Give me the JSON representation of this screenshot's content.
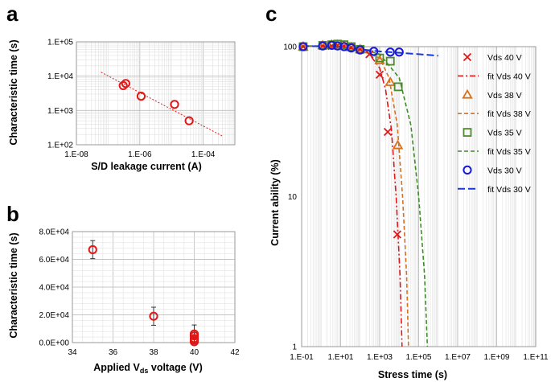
{
  "panels": {
    "a": "a",
    "b": "b",
    "c": "c"
  },
  "chart_data": [
    {
      "id": "a",
      "type": "scatter",
      "x_scale": "log",
      "y_scale": "log",
      "xlabel": "S/D leakage current (A)",
      "ylabel": "Characteristic time (s)",
      "xlim": [
        1e-08,
        0.001
      ],
      "ylim": [
        100,
        100000
      ],
      "x_ticks": [
        {
          "value": 1e-08,
          "label": "1.E-08"
        },
        {
          "value": 1e-06,
          "label": "1.E-06"
        },
        {
          "value": 0.0001,
          "label": "1.E-04"
        }
      ],
      "y_ticks": [
        {
          "value": 100,
          "label": "1.E+02"
        },
        {
          "value": 1000,
          "label": "1.E+03"
        },
        {
          "value": 10000,
          "label": "1.E+04"
        },
        {
          "value": 100000,
          "label": "1.E+05"
        }
      ],
      "points": [
        {
          "x": 3e-07,
          "y": 5300
        },
        {
          "x": 3.6e-07,
          "y": 6100
        },
        {
          "x": 1.1e-06,
          "y": 2600
        },
        {
          "x": 1.25e-05,
          "y": 1500
        },
        {
          "x": 3.6e-05,
          "y": 500
        }
      ],
      "fit": [
        {
          "x": 6e-08,
          "y": 13000
        },
        {
          "x": 0.0004,
          "y": 180
        }
      ]
    },
    {
      "id": "b",
      "type": "scatter",
      "xlabel_main": "Applied V",
      "xlabel_sub": "ds",
      "xlabel_end": " voltage (V)",
      "ylabel": "Characteristic time (s)",
      "xlim": [
        34,
        42
      ],
      "ylim": [
        0,
        80000
      ],
      "x_ticks": [
        {
          "value": 34,
          "label": "34"
        },
        {
          "value": 36,
          "label": "36"
        },
        {
          "value": 38,
          "label": "38"
        },
        {
          "value": 40,
          "label": "40"
        },
        {
          "value": 42,
          "label": "42"
        }
      ],
      "y_ticks": [
        {
          "value": 0,
          "label": "0.0E+00"
        },
        {
          "value": 20000,
          "label": "2.0E+04"
        },
        {
          "value": 40000,
          "label": "4.0E+04"
        },
        {
          "value": 60000,
          "label": "6.0E+04"
        },
        {
          "value": 80000,
          "label": "8.0E+04"
        }
      ],
      "points": [
        {
          "x": 35,
          "y": 67000,
          "err": 6500
        },
        {
          "x": 38,
          "y": 19000,
          "err": 6500
        },
        {
          "x": 40,
          "y": 6200,
          "err": 6500
        },
        {
          "x": 40,
          "y": 4800,
          "err": 0
        },
        {
          "x": 40,
          "y": 3000,
          "err": 0
        },
        {
          "x": 40,
          "y": 1800,
          "err": 0
        },
        {
          "x": 40,
          "y": 600,
          "err": 0
        }
      ]
    },
    {
      "id": "c",
      "type": "scatter",
      "x_scale": "log",
      "y_scale": "log",
      "xlabel": "Stress time (s)",
      "ylabel": "Current ability (%)",
      "xlim": [
        0.1,
        100000000000.0
      ],
      "ylim": [
        1,
        100
      ],
      "x_ticks": [
        {
          "value": 0.1,
          "label": "1.E-01"
        },
        {
          "value": 10,
          "label": "1.E+01"
        },
        {
          "value": 1000,
          "label": "1.E+03"
        },
        {
          "value": 100000,
          "label": "1.E+05"
        },
        {
          "value": 10000000,
          "label": "1.E+07"
        },
        {
          "value": 1000000000,
          "label": "1.E+09"
        },
        {
          "value": 100000000000,
          "label": "1.E+11"
        }
      ],
      "y_ticks": [
        {
          "value": 1,
          "label": "1"
        },
        {
          "value": 10,
          "label": "10"
        },
        {
          "value": 100,
          "label": "100"
        }
      ],
      "series": [
        {
          "name": "Vds 40 V",
          "marker": "x",
          "color": "#e01818",
          "points": [
            [
              0.12,
              100
            ],
            [
              1.2,
              101
            ],
            [
              3.5,
              101
            ],
            [
              7,
              102
            ],
            [
              15,
              101
            ],
            [
              35,
              99
            ],
            [
              100,
              96
            ],
            [
              300,
              89
            ],
            [
              1000,
              65
            ],
            [
              2600,
              27
            ],
            [
              8000,
              5.6
            ]
          ]
        },
        {
          "name": "fit Vds 40 V",
          "line": "dashdot",
          "color": "#e01818",
          "points": [
            [
              0.1,
              101
            ],
            [
              10,
              100
            ],
            [
              100,
              95
            ],
            [
              300,
              89
            ],
            [
              1000,
              72
            ],
            [
              2000,
              52
            ],
            [
              4000,
              28
            ],
            [
              7000,
              10
            ],
            [
              11000,
              3
            ],
            [
              14000,
              1
            ]
          ]
        },
        {
          "name": "Vds 38 V",
          "marker": "triangle",
          "color": "#d8701c",
          "points": [
            [
              0.12,
              100
            ],
            [
              1.2,
              102
            ],
            [
              3.5,
              103
            ],
            [
              7,
              103
            ],
            [
              15,
              102
            ],
            [
              35,
              99
            ],
            [
              100,
              96
            ],
            [
              1000,
              81
            ],
            [
              3500,
              58
            ],
            [
              8500,
              22
            ]
          ]
        },
        {
          "name": "fit Vds 38 V",
          "line": "dash",
          "color": "#d8701c",
          "points": [
            [
              0.1,
              101
            ],
            [
              10,
              101
            ],
            [
              100,
              95
            ],
            [
              1000,
              84
            ],
            [
              3000,
              62
            ],
            [
              8000,
              30
            ],
            [
              15000,
              10
            ],
            [
              24000,
              3
            ],
            [
              30000,
              1
            ]
          ]
        },
        {
          "name": "Vds 35 V",
          "marker": "square",
          "color": "#4a8a2c",
          "points": [
            [
              0.12,
              100
            ],
            [
              1.2,
              102
            ],
            [
              3.5,
              103
            ],
            [
              7,
              104
            ],
            [
              15,
              103
            ],
            [
              35,
              100
            ],
            [
              100,
              96
            ],
            [
              1000,
              84
            ],
            [
              3500,
              80
            ],
            [
              9000,
              54
            ]
          ]
        },
        {
          "name": "fit Vds 35 V",
          "line": "dash",
          "color": "#3e8c2a",
          "points": [
            [
              0.1,
              101
            ],
            [
              10,
              101
            ],
            [
              100,
              97
            ],
            [
              1000,
              89
            ],
            [
              10000,
              62
            ],
            [
              40000,
              30
            ],
            [
              100000,
              10
            ],
            [
              200000,
              3
            ],
            [
              280000,
              1
            ]
          ]
        },
        {
          "name": "Vds 30 V",
          "marker": "circle",
          "color": "#1818d8",
          "points": [
            [
              0.12,
              100
            ],
            [
              1.2,
              101
            ],
            [
              3.5,
              102
            ],
            [
              7,
              101
            ],
            [
              15,
              100
            ],
            [
              35,
              98
            ],
            [
              100,
              95
            ],
            [
              500,
              93
            ],
            [
              3500,
              92
            ],
            [
              10000,
              92
            ]
          ]
        },
        {
          "name": "fit Vds 30 V",
          "line": "longdash",
          "color": "#1838d8",
          "points": [
            [
              0.1,
              101
            ],
            [
              10,
              100
            ],
            [
              100,
              96
            ],
            [
              1000,
              93
            ],
            [
              10000,
              91
            ],
            [
              100000,
              89
            ],
            [
              1000000,
              87
            ]
          ]
        }
      ]
    }
  ]
}
